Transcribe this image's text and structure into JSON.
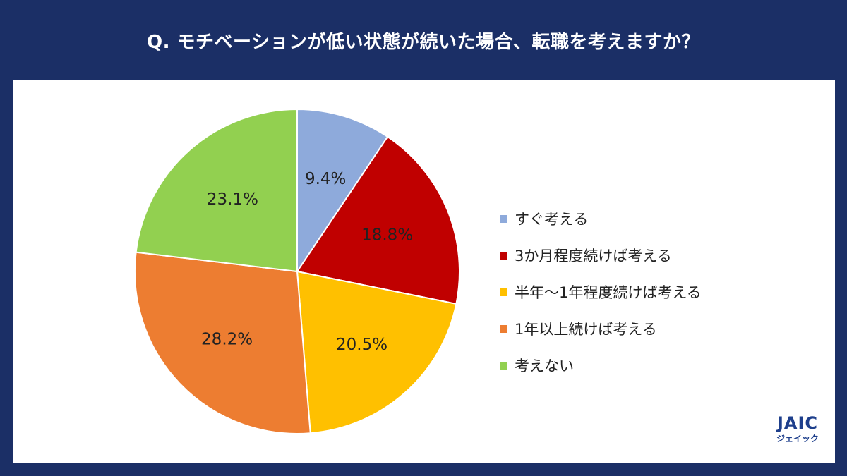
{
  "title": "Q. モチベーションが低い状態が続いた場合、転職を考えますか？",
  "chart_data": {
    "type": "pie",
    "categories": [
      "すぐ考える",
      "3か月程度続けば考える",
      "半年〜1年程度続けば考える",
      "1年以上続けば考える",
      "考えない"
    ],
    "values": [
      9.4,
      18.8,
      20.5,
      28.2,
      23.1
    ],
    "labels": [
      "9.4%",
      "18.8%",
      "20.5%",
      "28.2%",
      "23.1%"
    ],
    "colors": [
      "#8eaadb",
      "#c00000",
      "#ffc000",
      "#ed7d31",
      "#92d050"
    ],
    "start": "12 o'clock, clockwise",
    "legend": "right"
  },
  "logo": {
    "mark": "JAIC",
    "sub": "ジェイック"
  }
}
